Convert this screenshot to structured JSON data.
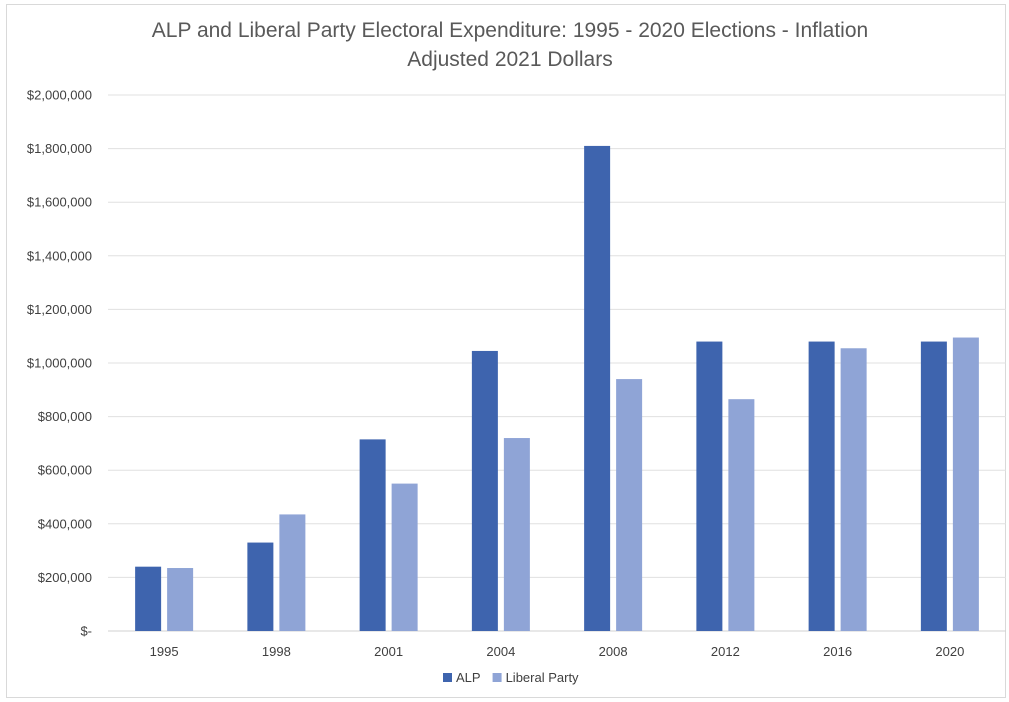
{
  "chart_data": {
    "type": "bar",
    "title_line1": "ALP and Liberal Party Electoral Expenditure: 1995 - 2020 Elections - Inflation",
    "title_line2": "Adjusted 2021 Dollars",
    "categories": [
      "1995",
      "1998",
      "2001",
      "2004",
      "2008",
      "2012",
      "2016",
      "2020"
    ],
    "series": [
      {
        "name": "ALP",
        "color": "#3e64ae",
        "values": [
          240000,
          330000,
          715000,
          1045000,
          1810000,
          1080000,
          1080000,
          1080000
        ]
      },
      {
        "name": "Liberal Party",
        "color": "#8fa4d6",
        "values": [
          235000,
          435000,
          550000,
          720000,
          940000,
          865000,
          1055000,
          1095000
        ]
      }
    ],
    "ylim": [
      0,
      2000000
    ],
    "y_ticks": [
      "$-",
      "$200,000",
      "$400,000",
      "$600,000",
      "$800,000",
      "$1,000,000",
      "$1,200,000",
      "$1,400,000",
      "$1,600,000",
      "$1,800,000",
      "$2,000,000"
    ],
    "grid": true,
    "legend_position": "bottom"
  }
}
